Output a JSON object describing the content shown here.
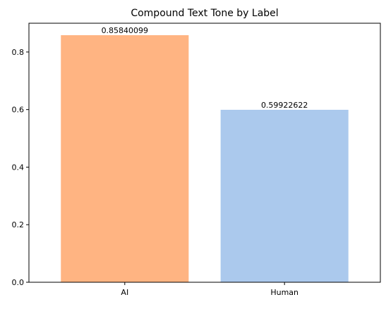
{
  "chart_data": {
    "type": "bar",
    "title": "Compound Text Tone by Label",
    "xlabel": "",
    "ylabel": "",
    "categories": [
      "AI",
      "Human"
    ],
    "values": [
      0.85840099,
      0.59922622
    ],
    "value_labels": [
      "0.85840099",
      "0.59922622"
    ],
    "colors": [
      "#ffb482",
      "#abc9ed"
    ],
    "ylim": [
      0,
      0.9
    ],
    "yticks": [
      0.0,
      0.2,
      0.4,
      0.6,
      0.8
    ],
    "ytick_labels": [
      "0.0",
      "0.2",
      "0.4",
      "0.6",
      "0.8"
    ],
    "grid": false,
    "legend": "none"
  }
}
